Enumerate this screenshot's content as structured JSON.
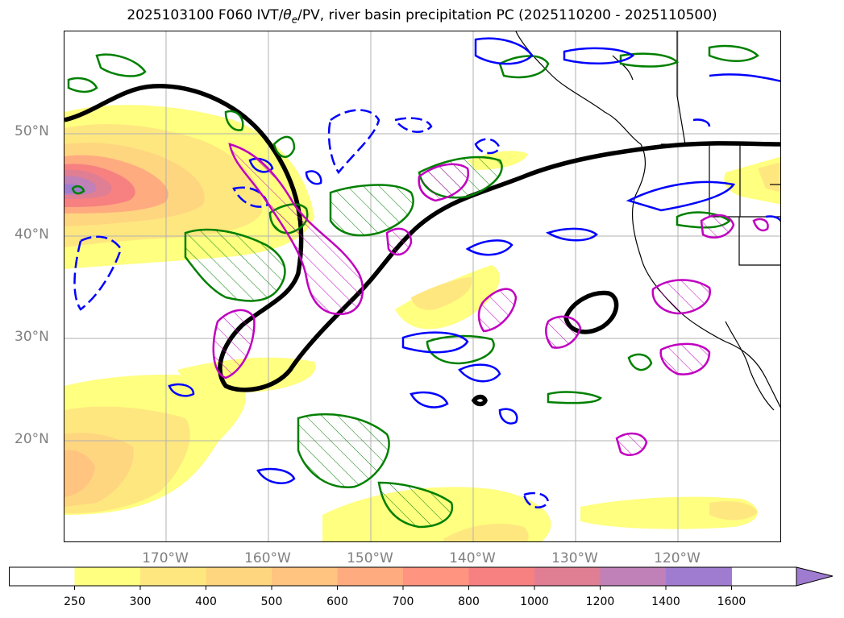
{
  "title": {
    "prefix": "2025103100 F060 IVT/",
    "theta": "θ",
    "theta_sub": "e",
    "suffix": "/PV, river basin precipitation PC (2025110200 - 2025110500)"
  },
  "map": {
    "lat_labels": [
      "50°N",
      "40°N",
      "30°N",
      "20°N"
    ],
    "lon_labels": [
      "170°W",
      "160°W",
      "150°W",
      "140°W",
      "130°W",
      "120°W"
    ],
    "contour_colors": {
      "theta_e": "#000000",
      "pv_positive": "#008000",
      "pv_negative": "#0000ff",
      "precip_pc": "#c000c0",
      "coastline": "#000000",
      "gridline": "#b0b0b0"
    }
  },
  "colorbar": {
    "ticks": [
      "250",
      "300",
      "400",
      "500",
      "600",
      "700",
      "800",
      "1000",
      "1200",
      "1400",
      "1600"
    ],
    "colors": [
      "#ffffff",
      "#ffff80",
      "#ffe780",
      "#ffd680",
      "#ffc480",
      "#ffab80",
      "#ff9480",
      "#f78080",
      "#e07e94",
      "#c080b8",
      "#a07cd0"
    ],
    "extend": "max"
  }
}
